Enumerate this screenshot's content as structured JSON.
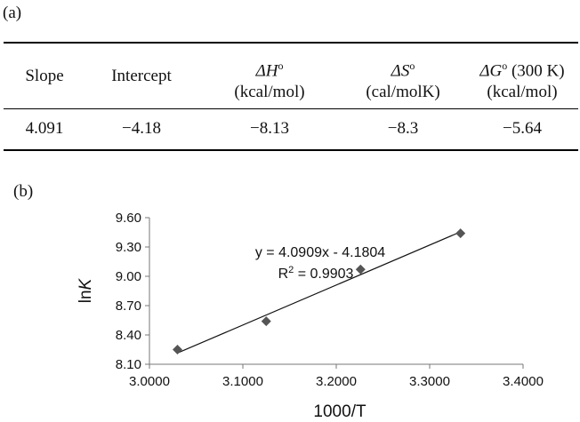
{
  "table": {
    "panel_label": "(a)",
    "headers": [
      {
        "line1": "Slope",
        "line2": ""
      },
      {
        "line1": "Intercept",
        "line2": ""
      },
      {
        "line1_sym": "ΔH",
        "line1_sup": "o",
        "line1_rest": "",
        "line2": "(kcal/mol)"
      },
      {
        "line1_sym": "ΔS",
        "line1_sup": "o",
        "line1_rest": "",
        "line2": "(cal/molK)"
      },
      {
        "line1_sym": "ΔG",
        "line1_sup": "o",
        "line1_rest": " (300 K)",
        "line2": "(kcal/mol)"
      }
    ],
    "row": [
      "4.091",
      "−4.18",
      "−8.13",
      "−8.3",
      "−5.64"
    ]
  },
  "chart_data": {
    "panel_label": "(b)",
    "type": "scatter",
    "x": [
      3.03,
      3.125,
      3.226,
      3.333
    ],
    "y": [
      8.25,
      8.54,
      9.07,
      9.44
    ],
    "xlabel": "1000/T",
    "ylabel_prefix": "ln",
    "ylabel_italic": "K",
    "xlim": [
      3.0,
      3.4
    ],
    "ylim": [
      8.1,
      9.6
    ],
    "xticks": [
      "3.0000",
      "3.1000",
      "3.2000",
      "3.3000",
      "3.4000"
    ],
    "yticks": [
      "8.10",
      "8.40",
      "8.70",
      "9.00",
      "9.30",
      "9.60"
    ],
    "trendline": {
      "slope": 4.0909,
      "intercept": -4.1804
    },
    "equation": "y = 4.0909x - 4.1804",
    "r2_prefix": "R",
    "r2_sup": "2",
    "r2_value": " = 0.9903",
    "marker_color": "#555555",
    "line_color": "#111111",
    "grid": false
  }
}
